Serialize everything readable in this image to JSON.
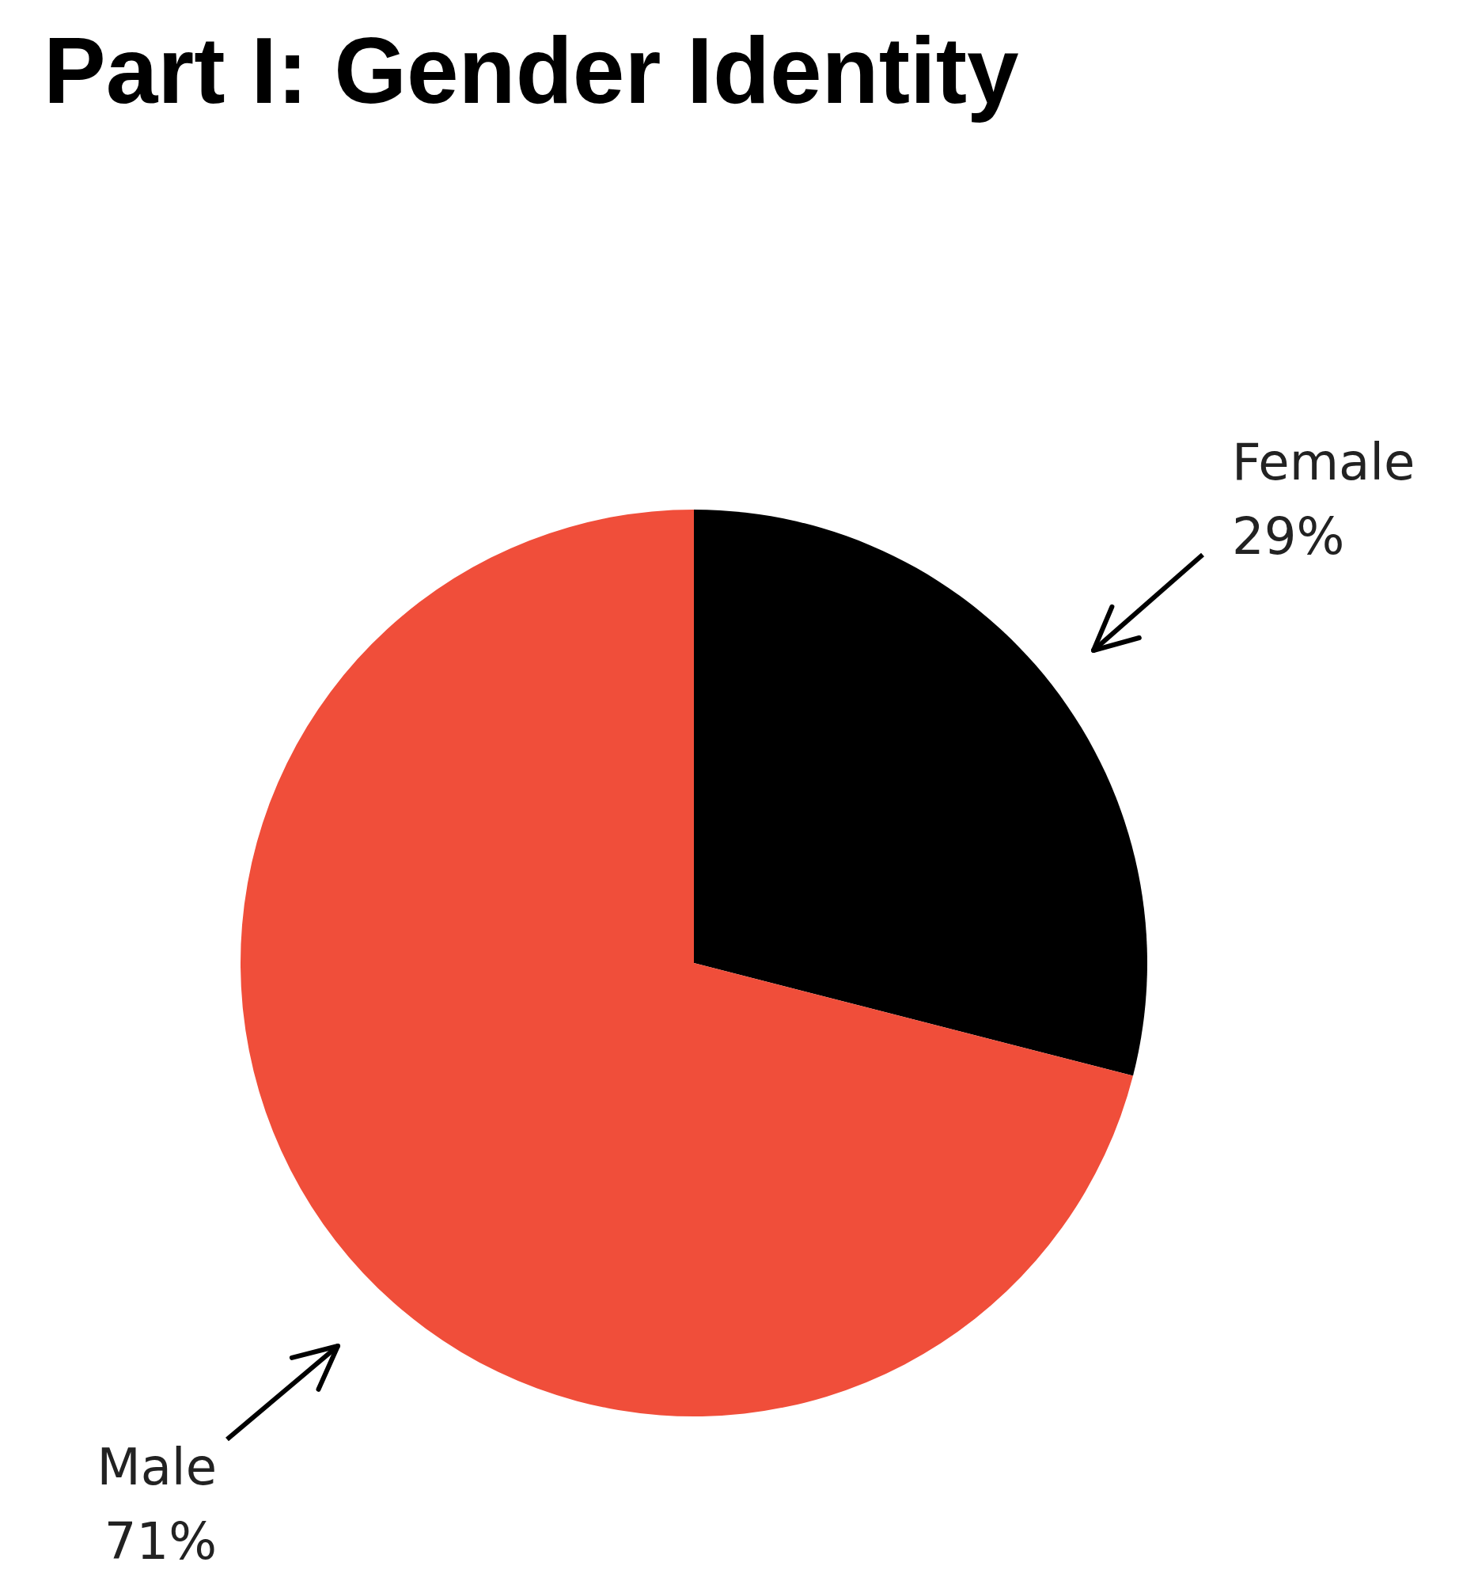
{
  "chart_data": {
    "type": "pie",
    "title": "Part I: Gender Identity",
    "categories": [
      "Female",
      "Male"
    ],
    "values": [
      29,
      71
    ],
    "colors": [
      "#000000",
      "#f04e3a"
    ],
    "value_labels": [
      "29%",
      "71%"
    ]
  }
}
